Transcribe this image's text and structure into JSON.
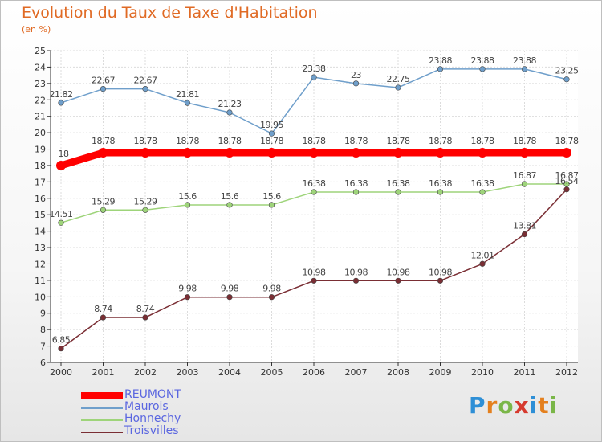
{
  "title": "Evolution du Taux de Taxe d'Habitation",
  "subtitle": "(en %)",
  "logo": {
    "letters": [
      "P",
      "r",
      "o",
      "x",
      "i",
      "t",
      "i"
    ],
    "colors": [
      "#2e8fd6",
      "#e4801e",
      "#7ab648",
      "#d63a2e",
      "#2e8fd6",
      "#e4801e",
      "#7ab648"
    ]
  },
  "chart_data": {
    "type": "line",
    "title": "Evolution du Taux de Taxe d'Habitation",
    "ylabel": "(en %)",
    "xlabel": "",
    "x": [
      "2000",
      "2001",
      "2002",
      "2003",
      "2004",
      "2005",
      "2006",
      "2007",
      "2008",
      "2009",
      "2010",
      "2011",
      "2012"
    ],
    "ylim": [
      6,
      25
    ],
    "yticks": [
      "6",
      "7",
      "8",
      "9",
      "10",
      "11",
      "12",
      "13",
      "14",
      "15",
      "16",
      "17",
      "18",
      "19",
      "20",
      "21",
      "22",
      "23",
      "24",
      "25"
    ],
    "grid": true,
    "legend_position": "bottom-left",
    "series": [
      {
        "name": "REUMONT",
        "color": "#ff0000",
        "values": [
          18,
          18.78,
          18.78,
          18.78,
          18.78,
          18.78,
          18.78,
          18.78,
          18.78,
          18.78,
          18.78,
          18.78,
          18.78
        ],
        "labels": [
          "18",
          "18.78",
          "18.78",
          "18.78",
          "18.78",
          "18.78",
          "18.78",
          "18.78",
          "18.78",
          "18.78",
          "18.78",
          "18.78",
          "18.78"
        ]
      },
      {
        "name": "Maurois",
        "color": "#6f9fcb",
        "values": [
          21.82,
          22.67,
          22.67,
          21.81,
          21.23,
          19.95,
          23.38,
          23,
          22.75,
          23.88,
          23.88,
          23.88,
          23.25
        ],
        "labels": [
          "21.82",
          "22.67",
          "22.67",
          "21.81",
          "21.23",
          "19.95",
          "23.38",
          "23",
          "22.75",
          "23.88",
          "23.88",
          "23.88",
          "23.25"
        ]
      },
      {
        "name": "Honnechy",
        "color": "#9ed47a",
        "values": [
          14.51,
          15.29,
          15.29,
          15.6,
          15.6,
          15.6,
          16.38,
          16.38,
          16.38,
          16.38,
          16.38,
          16.87,
          16.87
        ],
        "labels": [
          "14.51",
          "15.29",
          "15.29",
          "15.6",
          "15.6",
          "15.6",
          "16.38",
          "16.38",
          "16.38",
          "16.38",
          "16.38",
          "16.87",
          "16.87"
        ]
      },
      {
        "name": "Troisvilles",
        "color": "#7a2e34",
        "values": [
          6.85,
          8.74,
          8.74,
          9.98,
          9.98,
          9.98,
          10.98,
          10.98,
          10.98,
          10.98,
          12.01,
          13.81,
          16.54
        ],
        "labels": [
          "6.85",
          "8.74",
          "8.74",
          "9.98",
          "9.98",
          "9.98",
          "10.98",
          "10.98",
          "10.98",
          "10.98",
          "12.01",
          "13.81",
          "16.54"
        ]
      }
    ]
  }
}
